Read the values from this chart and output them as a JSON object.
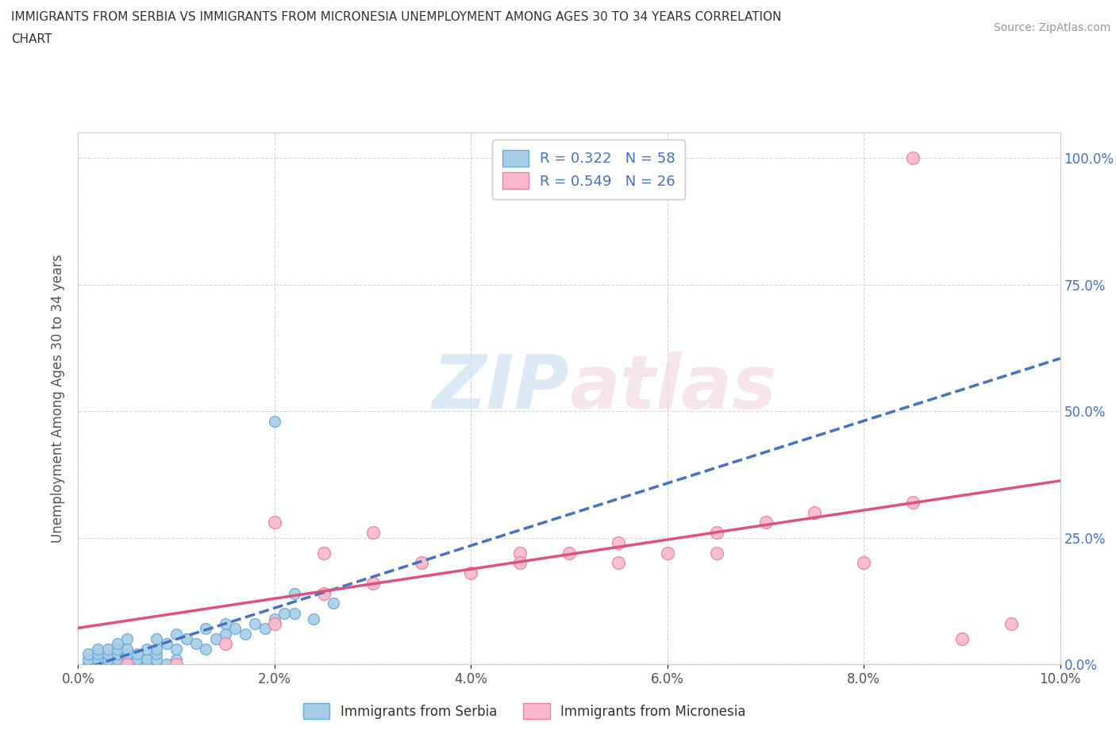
{
  "title_line1": "IMMIGRANTS FROM SERBIA VS IMMIGRANTS FROM MICRONESIA UNEMPLOYMENT AMONG AGES 30 TO 34 YEARS CORRELATION",
  "title_line2": "CHART",
  "source": "Source: ZipAtlas.com",
  "ylabel": "Unemployment Among Ages 30 to 34 years",
  "xlim": [
    0.0,
    0.1
  ],
  "ylim": [
    0.0,
    1.05
  ],
  "xticks": [
    0.0,
    0.02,
    0.04,
    0.06,
    0.08,
    0.1
  ],
  "xticklabels": [
    "0.0%",
    "2.0%",
    "4.0%",
    "6.0%",
    "8.0%",
    "10.0%"
  ],
  "yticks": [
    0.0,
    0.25,
    0.5,
    0.75,
    1.0
  ],
  "yticklabels": [
    "0.0%",
    "25.0%",
    "50.0%",
    "75.0%",
    "100.0%"
  ],
  "serbia_color": "#a8cce8",
  "micronesia_color": "#f9b8cc",
  "serbia_edge_color": "#6aaed6",
  "micronesia_edge_color": "#f080a0",
  "trend_serbia_color": "#4472c4",
  "trend_micronesia_color": "#e05080",
  "R_serbia": 0.322,
  "N_serbia": 58,
  "R_micronesia": 0.549,
  "N_micronesia": 26,
  "serbia_x": [
    0.001,
    0.001,
    0.001,
    0.001,
    0.002,
    0.002,
    0.002,
    0.002,
    0.002,
    0.003,
    0.003,
    0.003,
    0.003,
    0.003,
    0.003,
    0.004,
    0.004,
    0.004,
    0.004,
    0.004,
    0.005,
    0.005,
    0.005,
    0.005,
    0.005,
    0.006,
    0.006,
    0.006,
    0.007,
    0.007,
    0.007,
    0.008,
    0.008,
    0.008,
    0.008,
    0.009,
    0.009,
    0.01,
    0.01,
    0.01,
    0.011,
    0.012,
    0.013,
    0.013,
    0.014,
    0.015,
    0.015,
    0.016,
    0.017,
    0.018,
    0.019,
    0.02,
    0.021,
    0.022,
    0.024,
    0.026,
    0.02,
    0.022
  ],
  "serbia_y": [
    0.0,
    0.0,
    0.01,
    0.02,
    0.0,
    0.0,
    0.01,
    0.02,
    0.03,
    0.0,
    0.0,
    0.0,
    0.01,
    0.02,
    0.03,
    0.0,
    0.01,
    0.02,
    0.03,
    0.04,
    0.0,
    0.01,
    0.02,
    0.03,
    0.05,
    0.0,
    0.01,
    0.02,
    0.0,
    0.01,
    0.03,
    0.01,
    0.02,
    0.03,
    0.05,
    0.0,
    0.04,
    0.01,
    0.03,
    0.06,
    0.05,
    0.04,
    0.03,
    0.07,
    0.05,
    0.06,
    0.08,
    0.07,
    0.06,
    0.08,
    0.07,
    0.09,
    0.1,
    0.1,
    0.09,
    0.12,
    0.48,
    0.14
  ],
  "micronesia_x": [
    0.005,
    0.01,
    0.015,
    0.02,
    0.025,
    0.03,
    0.035,
    0.04,
    0.045,
    0.05,
    0.055,
    0.06,
    0.065,
    0.07,
    0.075,
    0.08,
    0.085,
    0.09,
    0.095,
    0.02,
    0.025,
    0.03,
    0.045,
    0.055,
    0.065,
    0.085
  ],
  "micronesia_y": [
    0.0,
    0.0,
    0.04,
    0.08,
    0.14,
    0.16,
    0.2,
    0.18,
    0.22,
    0.22,
    0.24,
    0.22,
    0.26,
    0.28,
    0.3,
    0.2,
    0.32,
    0.05,
    0.08,
    0.28,
    0.22,
    0.26,
    0.2,
    0.2,
    0.22,
    1.0
  ],
  "background_color": "#ffffff",
  "grid_color": "#cccccc",
  "tick_color": "#4472c4",
  "label_color": "#555555"
}
